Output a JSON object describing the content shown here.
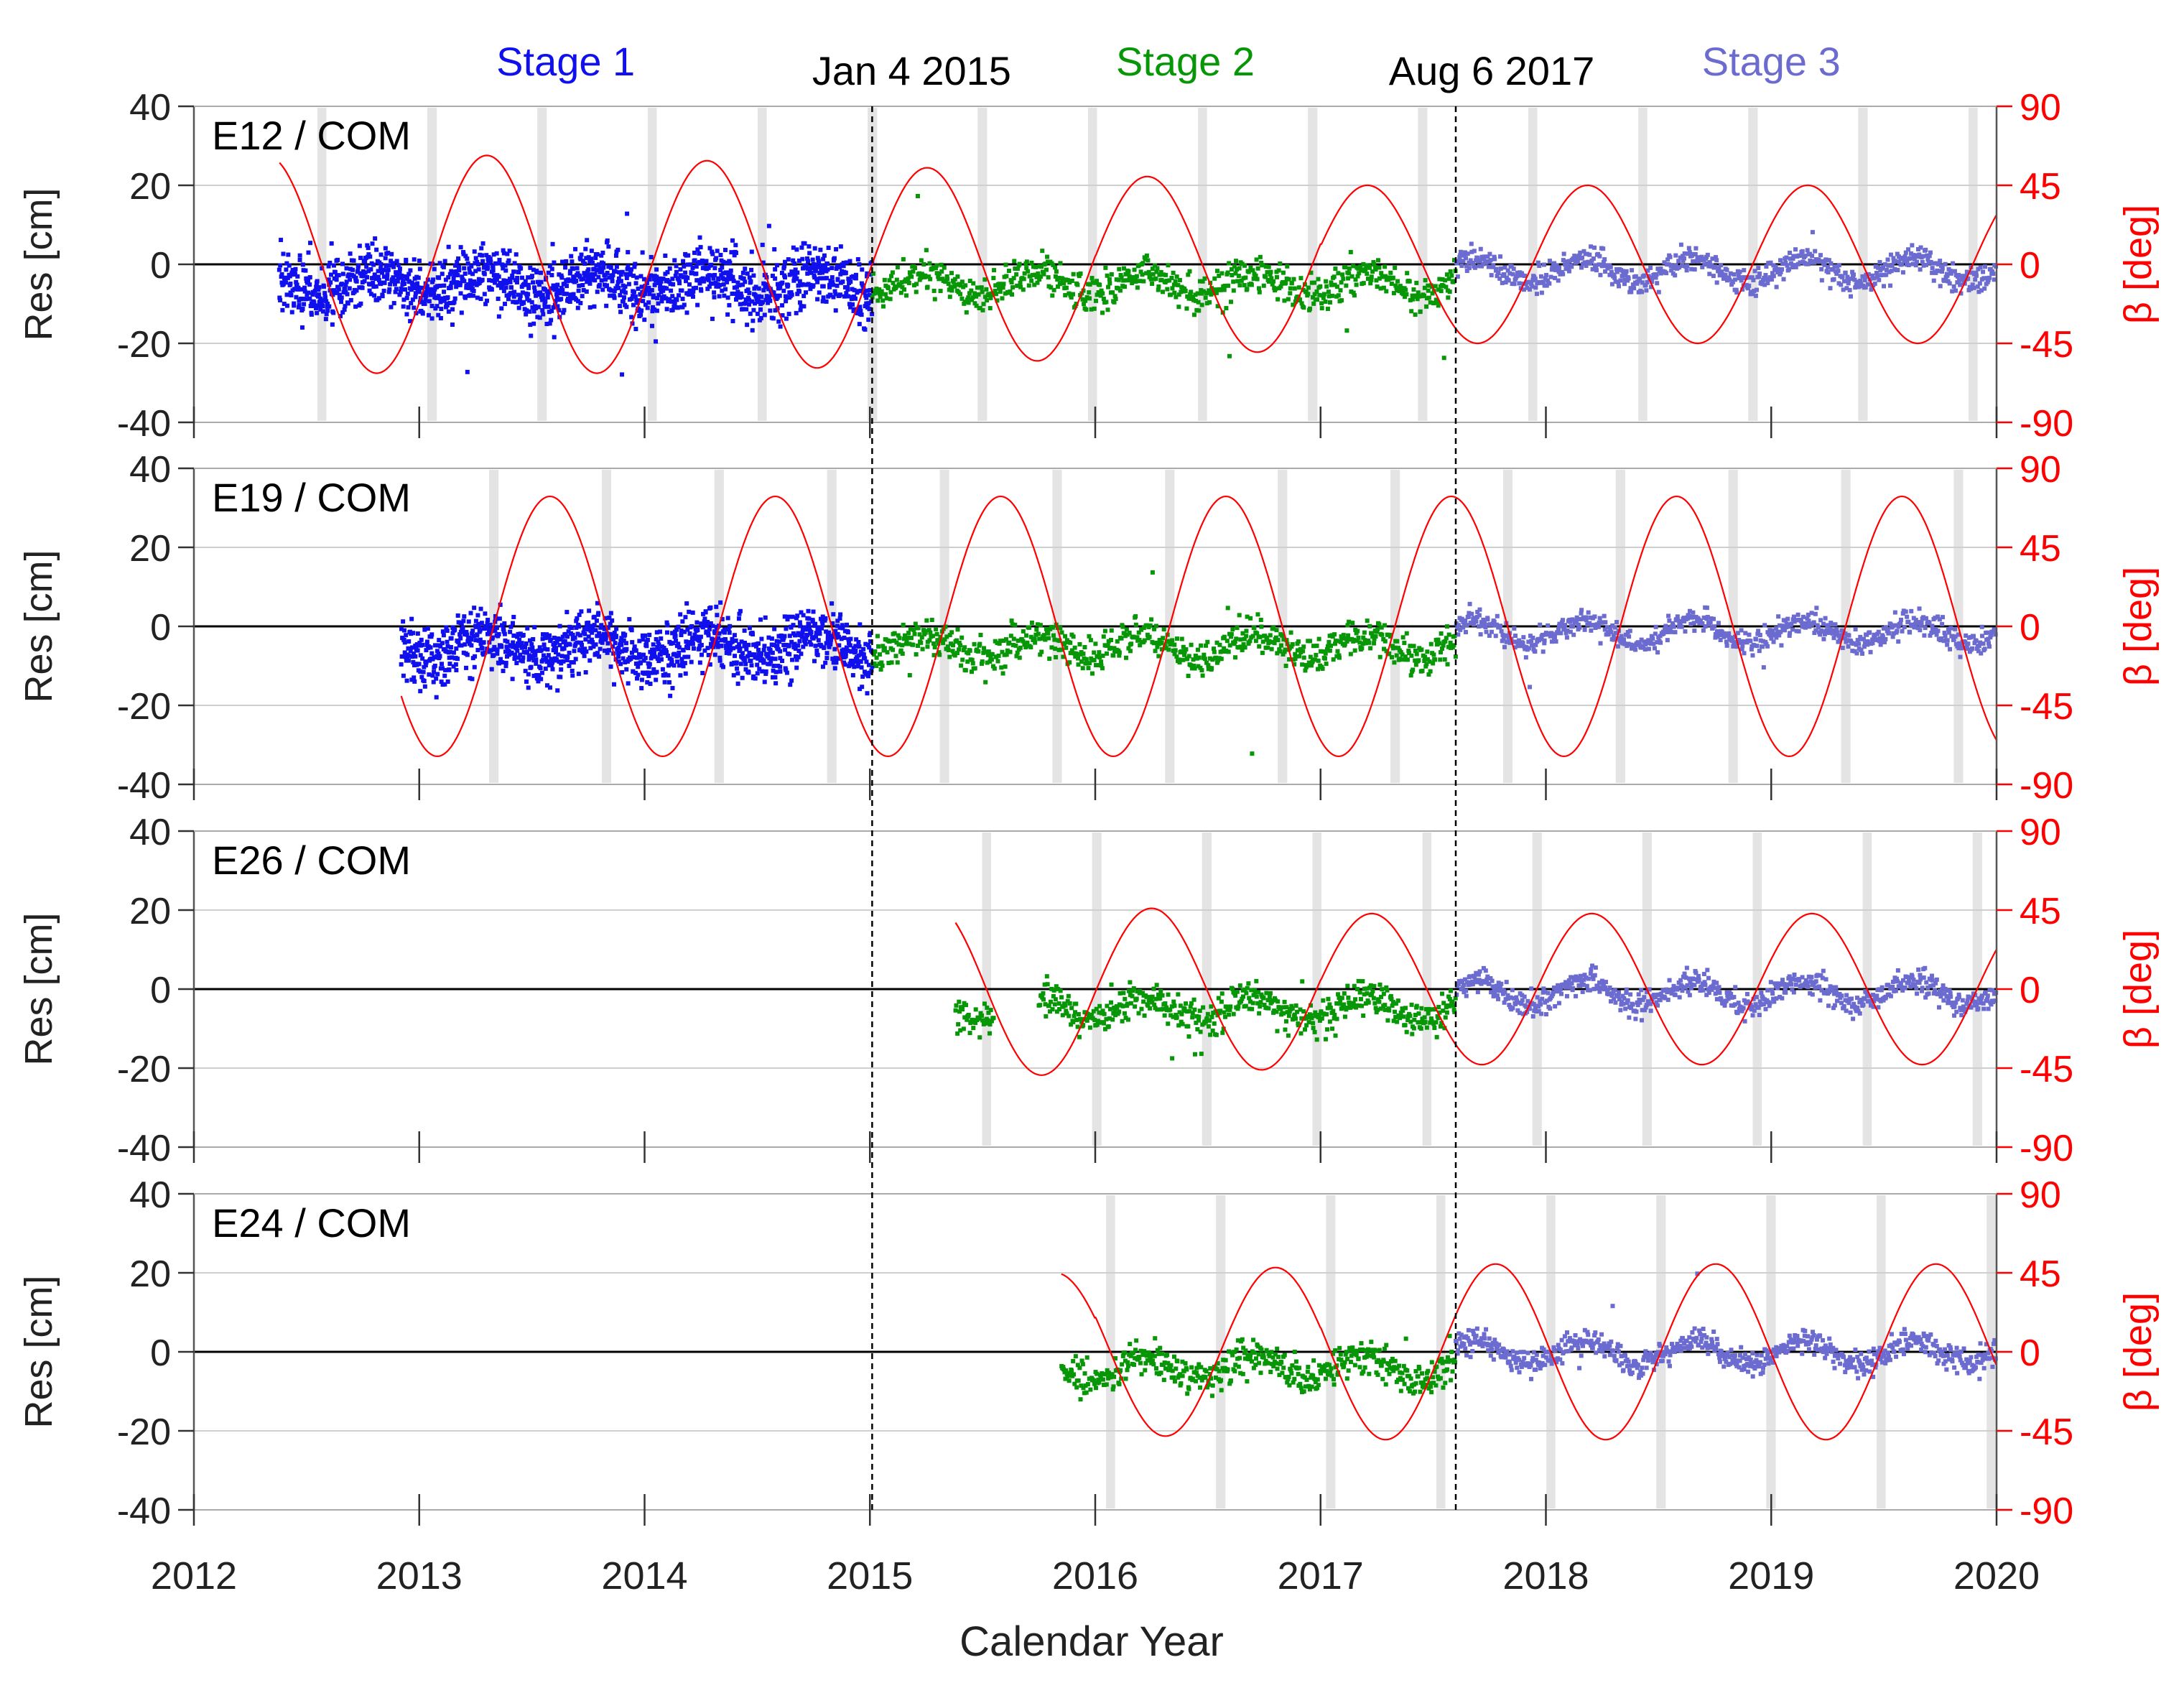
{
  "chart_data": {
    "type": "scatter",
    "xlabel": "Calendar Year",
    "ylabel_left": "Res [cm]",
    "ylabel_right": "β [deg]",
    "xlim": [
      2012,
      2020
    ],
    "x_ticks": [
      "2012",
      "2013",
      "2014",
      "2015",
      "2016",
      "2017",
      "2018",
      "2019",
      "2020"
    ],
    "ylim_left": [
      -40,
      40
    ],
    "y_ticks_left": [
      "-40",
      "-20",
      "0",
      "20",
      "40"
    ],
    "ylim_right": [
      -90,
      90
    ],
    "y_ticks_right": [
      "-90",
      "-45",
      "0",
      "45",
      "90"
    ],
    "stage_labels": [
      {
        "text": "Stage 1",
        "x": 2013.65,
        "color": "#1010ee"
      },
      {
        "text": "Stage 2",
        "x": 2016.4,
        "color": "#069606"
      },
      {
        "text": "Stage 3",
        "x": 2019.0,
        "color": "#6b6bd0"
      }
    ],
    "boundaries": [
      {
        "label": "Jan 4 2015",
        "x": 2015.01
      },
      {
        "label": "Aug 6 2017",
        "x": 2017.6
      }
    ],
    "stage_colors": {
      "stage1": "#1010ee",
      "stage2": "#069606",
      "stage3": "#6b6bd0",
      "beta": "#ff0000",
      "eclipse": "#e4e4e4"
    },
    "panels": [
      {
        "name": "E12 / COM",
        "data_start": 2012.38,
        "beta_start": 2012.38,
        "beta_amplitude": [
          62,
          59,
          55,
          50,
          45
        ],
        "beta_period": 0.977,
        "beta_peak": 2013.3,
        "noise": [
          6,
          3.5,
          2.5
        ],
        "offset": [
          -5,
          -5,
          -1.5
        ]
      },
      {
        "name": "E19 / COM",
        "data_start": 2012.92,
        "beta_start": 2012.92,
        "beta_amplitude": [
          74,
          74,
          74,
          74,
          74
        ],
        "beta_period": 1.0,
        "beta_peak": 2013.58,
        "noise": [
          6,
          3.5,
          2.5
        ],
        "offset": [
          -5,
          -5,
          -1.5
        ]
      },
      {
        "name": "E26 / COM",
        "data_start": 2015.38,
        "data_gap": [
          2015.55,
          2015.75
        ],
        "beta_start": 2015.38,
        "beta_amplitude": [
          55,
          52,
          49,
          46,
          43
        ],
        "beta_period": 0.977,
        "beta_peak": 2016.25,
        "noise": [
          6,
          3.5,
          2.5
        ],
        "offset": [
          -5,
          -5,
          -1.0
        ]
      },
      {
        "name": "E24 / COM",
        "data_start": 2015.85,
        "beta_start": 2015.85,
        "beta_amplitude": [
          40,
          43,
          45,
          48,
          50
        ],
        "beta_period": 0.977,
        "beta_peak": 2016.8,
        "noise": [
          6,
          3.5,
          2.5
        ],
        "offset": [
          -5,
          -4,
          0.0
        ]
      }
    ]
  }
}
